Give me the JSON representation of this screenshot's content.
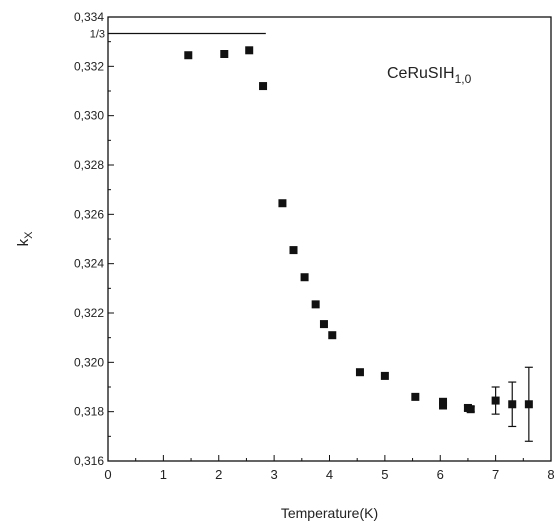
{
  "chart_data": {
    "type": "scatter",
    "title": "",
    "annotation": {
      "main": "CeRuSIH",
      "subscript": "1,0"
    },
    "xlabel": "Temperature(K)",
    "ylabel": {
      "main": "k",
      "subscript": "X"
    },
    "xlim": [
      0,
      8
    ],
    "ylim": [
      0.316,
      0.334
    ],
    "x_ticks": [
      0,
      1,
      2,
      3,
      4,
      5,
      6,
      7,
      8
    ],
    "x_tick_labels": [
      "0",
      "1",
      "2",
      "3",
      "4",
      "5",
      "6",
      "7",
      "8"
    ],
    "y_ticks": [
      0.316,
      0.318,
      0.32,
      0.322,
      0.324,
      0.326,
      0.328,
      0.33,
      0.332,
      0.334
    ],
    "y_tick_labels": [
      "0,316",
      "0,318",
      "0,320",
      "0,322",
      "0,324",
      "0,326",
      "0,328",
      "0,330",
      "0,332",
      "0,334"
    ],
    "reference_line": {
      "label": "1/3",
      "y": 0.33333,
      "x_start": 0,
      "x_end": 2.85
    },
    "grid": false,
    "marker": "square",
    "color": "#111111",
    "series": [
      {
        "points": [
          {
            "x": 1.45,
            "y": 0.33245,
            "err": 0
          },
          {
            "x": 2.1,
            "y": 0.3325,
            "err": 0
          },
          {
            "x": 2.55,
            "y": 0.33265,
            "err": 0
          },
          {
            "x": 2.8,
            "y": 0.3312,
            "err": 0
          },
          {
            "x": 3.15,
            "y": 0.32645,
            "err": 0
          },
          {
            "x": 3.35,
            "y": 0.32455,
            "err": 0
          },
          {
            "x": 3.55,
            "y": 0.32345,
            "err": 0
          },
          {
            "x": 3.75,
            "y": 0.32235,
            "err": 0
          },
          {
            "x": 3.9,
            "y": 0.32155,
            "err": 0
          },
          {
            "x": 4.05,
            "y": 0.3211,
            "err": 0
          },
          {
            "x": 4.55,
            "y": 0.3196,
            "err": 0
          },
          {
            "x": 5.0,
            "y": 0.31945,
            "err": 0
          },
          {
            "x": 5.55,
            "y": 0.3186,
            "err": 0
          },
          {
            "x": 6.05,
            "y": 0.3184,
            "err": 0
          },
          {
            "x": 6.05,
            "y": 0.31825,
            "err": 0
          },
          {
            "x": 6.5,
            "y": 0.31815,
            "err": 0.0001
          },
          {
            "x": 6.55,
            "y": 0.3181,
            "err": 0.0001
          },
          {
            "x": 7.0,
            "y": 0.31845,
            "err": 0.00055
          },
          {
            "x": 7.3,
            "y": 0.3183,
            "err": 0.0009
          },
          {
            "x": 7.6,
            "y": 0.3183,
            "err": 0.0015
          }
        ]
      }
    ]
  }
}
